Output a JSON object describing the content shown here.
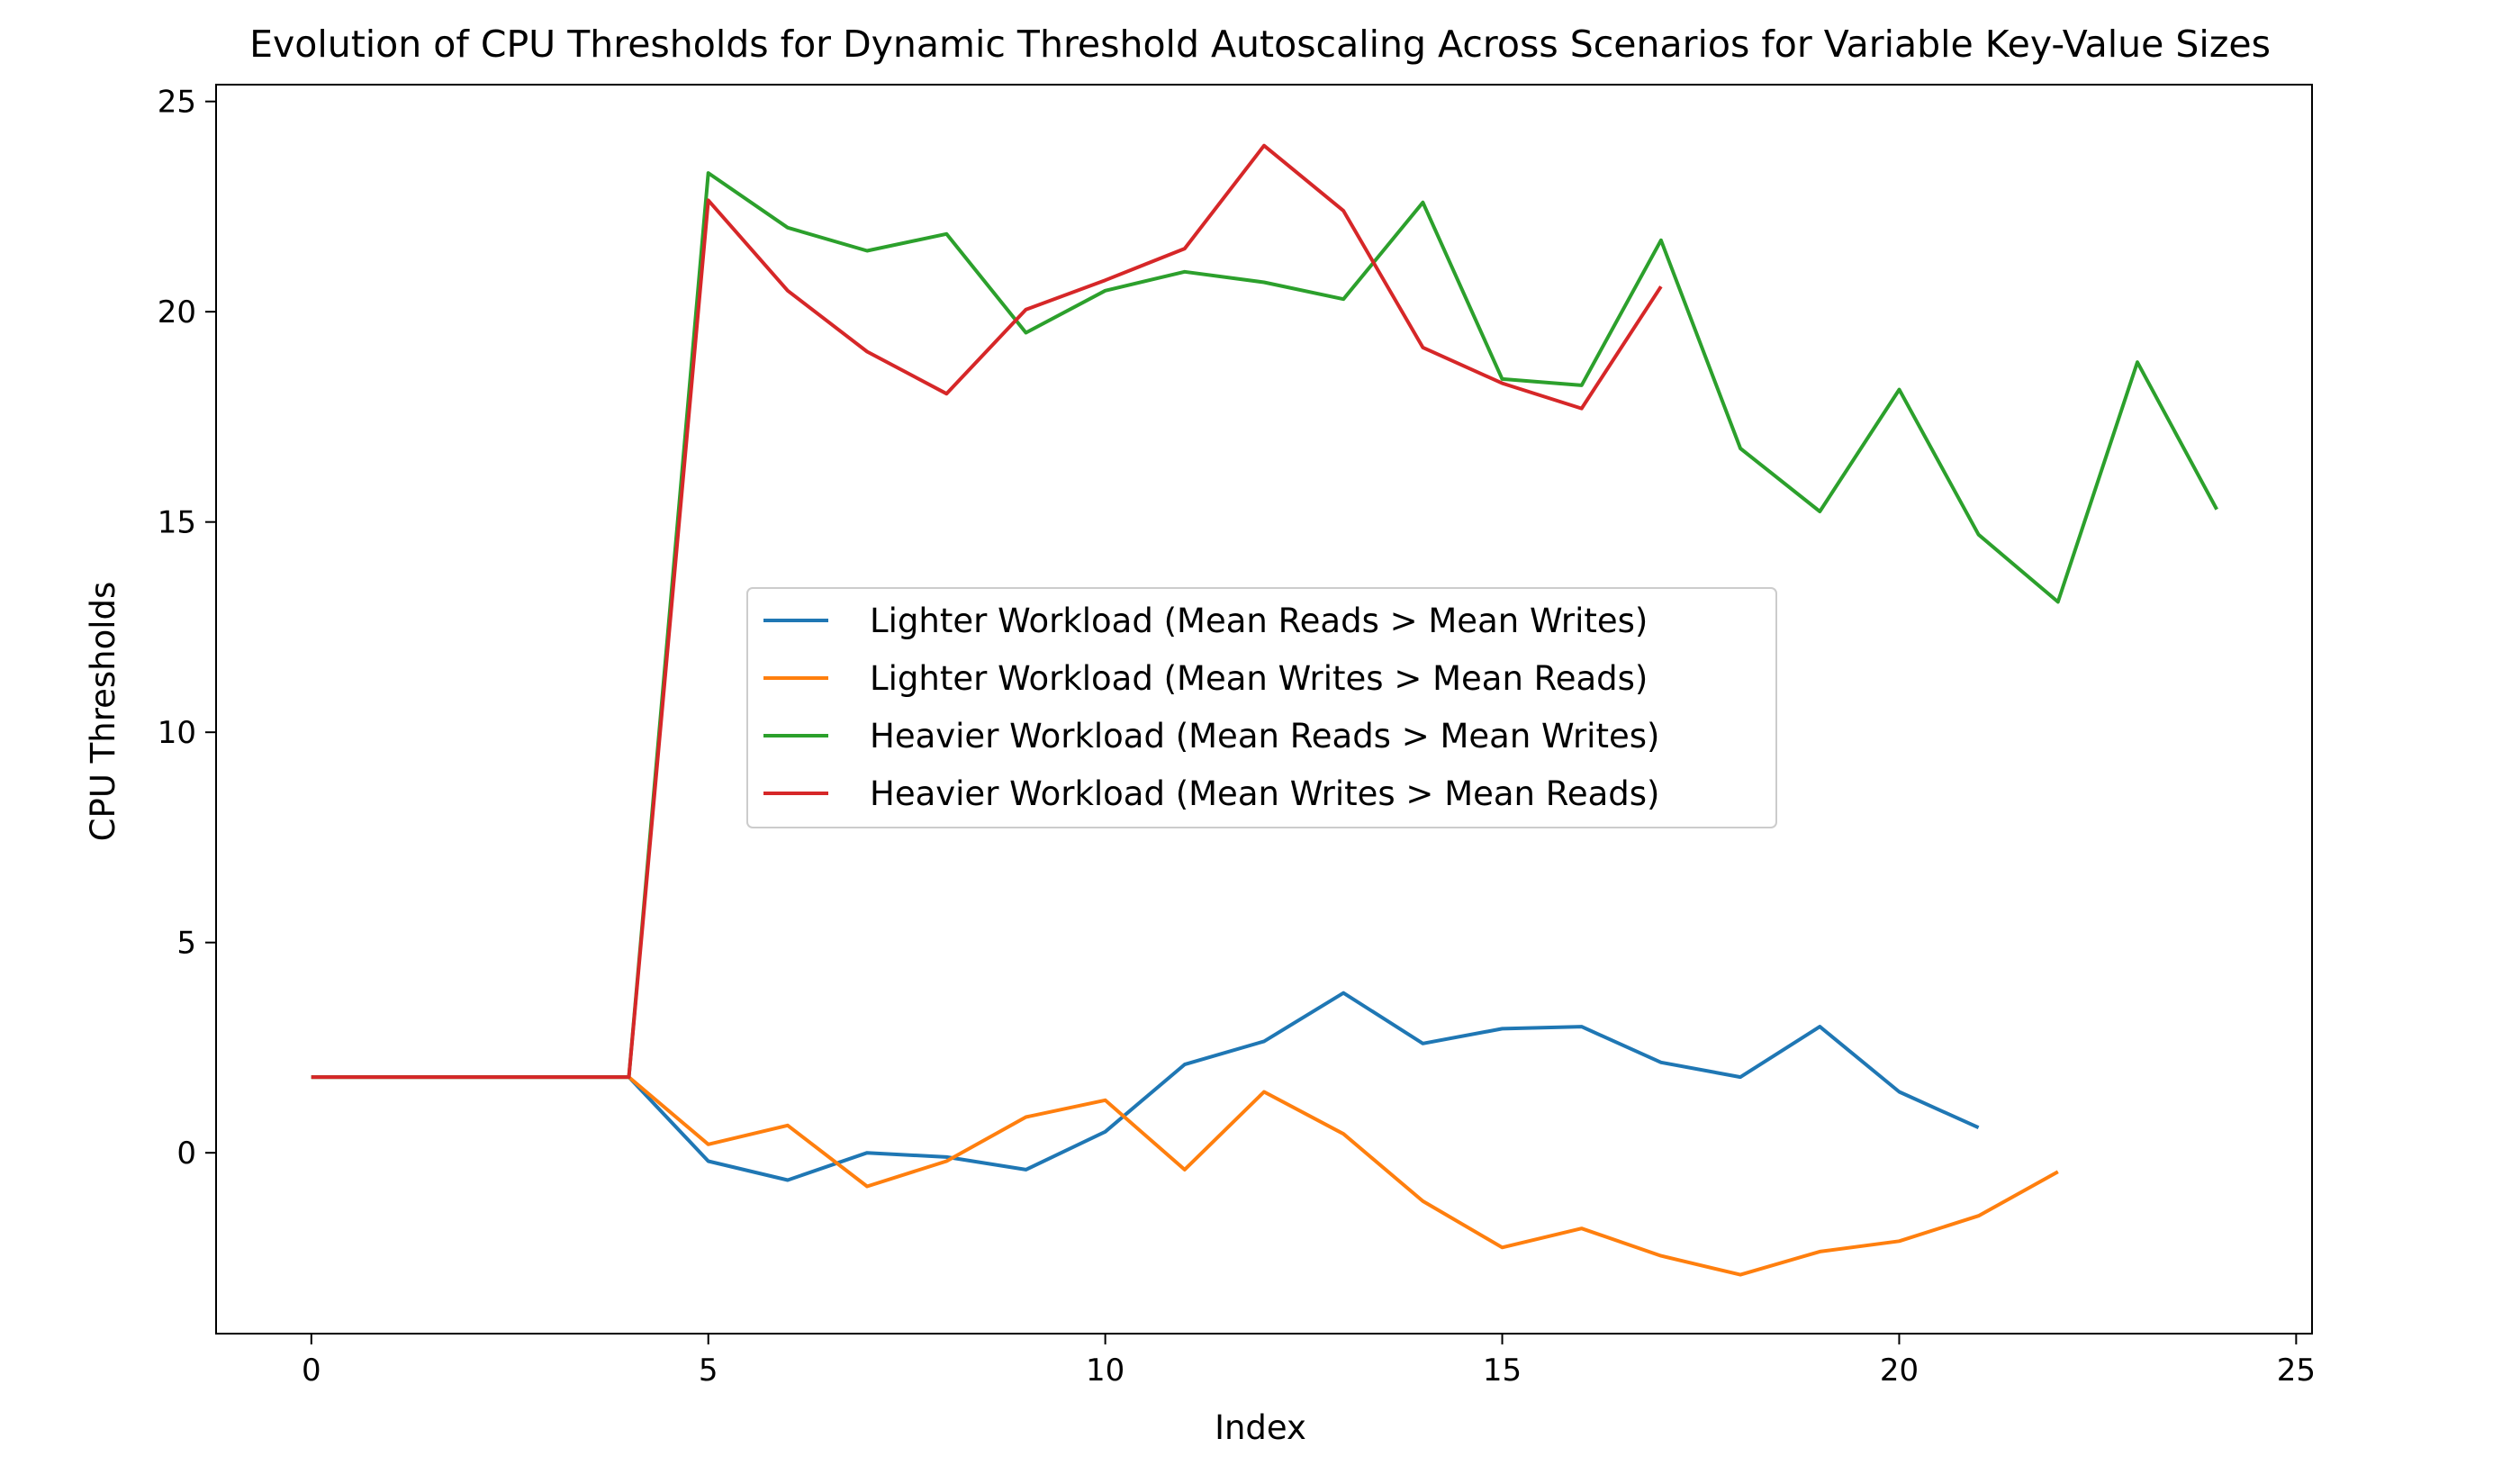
{
  "chart_data": {
    "type": "line",
    "title": "Evolution of CPU Thresholds for Dynamic Threshold Autoscaling Across Scenarios for Variable Key-Value Sizes",
    "xlabel": "Index",
    "ylabel": "CPU Thresholds",
    "xlim": [
      -1.2,
      25.2
    ],
    "ylim": [
      -4.3,
      25.4
    ],
    "xticks": [
      0,
      5,
      10,
      15,
      20,
      25
    ],
    "yticks": [
      0,
      5,
      10,
      15,
      20,
      25
    ],
    "grid": false,
    "legend_position": "center",
    "series": [
      {
        "name": "Lighter Workload (Mean Reads > Mean Writes)",
        "color": "#1f77b4",
        "x": [
          0,
          1,
          2,
          3,
          4,
          5,
          6,
          7,
          8,
          9,
          10,
          11,
          12,
          13,
          14,
          15,
          16,
          17,
          18,
          19,
          20,
          21
        ],
        "values": [
          1.8,
          1.8,
          1.8,
          1.8,
          1.8,
          -0.2,
          -0.65,
          0.0,
          -0.1,
          -0.4,
          0.5,
          2.1,
          2.65,
          3.8,
          2.6,
          2.95,
          3.0,
          2.15,
          1.8,
          3.0,
          1.45,
          0.6
        ]
      },
      {
        "name": "Lighter Workload (Mean Writes > Mean Reads)",
        "color": "#ff7f0e",
        "x": [
          0,
          1,
          2,
          3,
          4,
          5,
          6,
          7,
          8,
          9,
          10,
          11,
          12,
          13,
          14,
          15,
          16,
          17,
          18,
          19,
          20,
          21,
          22
        ],
        "values": [
          1.8,
          1.8,
          1.8,
          1.8,
          1.8,
          0.2,
          0.65,
          -0.8,
          -0.2,
          0.85,
          1.25,
          -0.4,
          1.45,
          0.45,
          -1.15,
          -2.25,
          -1.8,
          -2.45,
          -2.9,
          -2.35,
          -2.1,
          -1.5,
          -0.45
        ]
      },
      {
        "name": "Heavier Workload (Mean Reads > Mean Writes)",
        "color": "#2ca02c",
        "x": [
          0,
          1,
          2,
          3,
          4,
          5,
          6,
          7,
          8,
          9,
          10,
          11,
          12,
          13,
          14,
          15,
          16,
          17,
          18,
          19,
          20,
          21,
          22,
          23,
          24
        ],
        "values": [
          1.8,
          1.8,
          1.8,
          1.8,
          1.8,
          23.3,
          22.0,
          21.45,
          21.85,
          19.5,
          20.5,
          20.95,
          20.7,
          20.3,
          22.6,
          18.4,
          18.25,
          21.7,
          16.75,
          15.25,
          18.15,
          14.7,
          13.1,
          18.8,
          15.3
        ]
      },
      {
        "name": "Heavier Workload (Mean Writes > Mean Reads)",
        "color": "#d62728",
        "x": [
          0,
          1,
          2,
          3,
          4,
          5,
          6,
          7,
          8,
          9,
          10,
          11,
          12,
          13,
          14,
          15,
          16,
          17
        ],
        "values": [
          1.8,
          1.8,
          1.8,
          1.8,
          1.8,
          22.65,
          20.5,
          19.05,
          18.05,
          20.05,
          20.75,
          21.5,
          23.95,
          22.4,
          19.15,
          18.3,
          17.7,
          20.6
        ]
      }
    ]
  }
}
